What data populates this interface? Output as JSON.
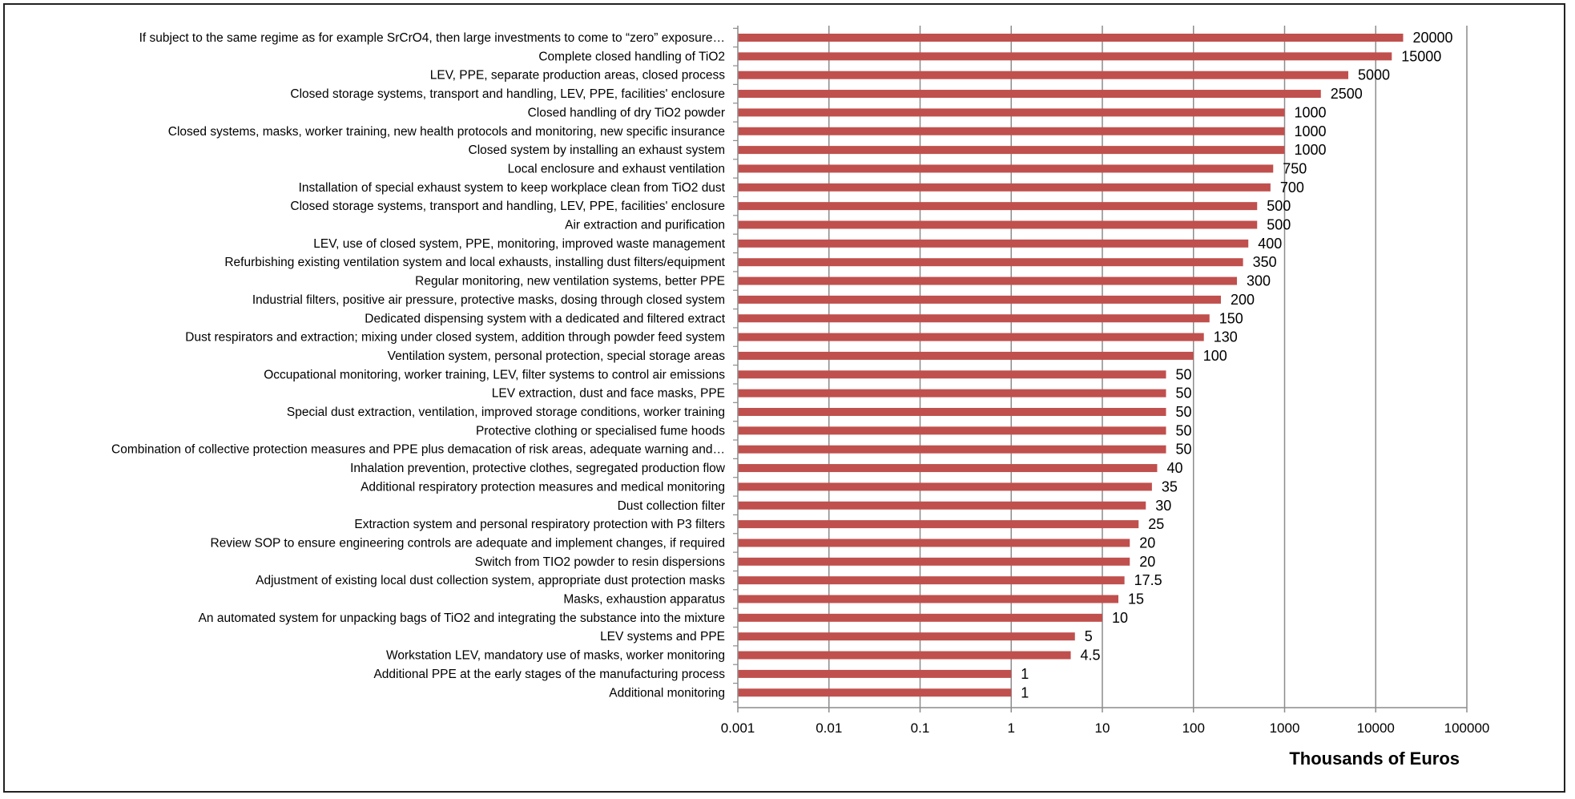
{
  "chart_data": {
    "type": "bar",
    "orientation": "horizontal",
    "xscale": "log",
    "xlim": [
      0.001,
      100000
    ],
    "xticks": [
      "0.001",
      "0.01",
      "0.1",
      "1",
      "10",
      "100",
      "1000",
      "10000",
      "100000"
    ],
    "xlabel": "Thousands of Euros",
    "ylabel": "",
    "title": "",
    "grid": "vertical major gridlines",
    "bar_color": "#c0504d",
    "categories": [
      "If subject to the same regime as for example SrCrO4, then large investments to come to “zero” exposure…",
      "Complete closed handling of TiO2",
      "LEV, PPE, separate production areas, closed process",
      "Closed storage systems, transport and handling, LEV, PPE, facilities' enclosure",
      "Closed handling of dry TiO2 powder",
      "Closed systems, masks, worker training, new health protocols and monitoring, new specific insurance",
      "Closed system by installing an exhaust system",
      "Local enclosure and exhaust ventilation",
      "Installation of special exhaust system to keep workplace clean from TiO2 dust",
      "Closed storage systems, transport and handling, LEV, PPE, facilities' enclosure",
      "Air extraction and purification",
      "LEV, use of closed system, PPE, monitoring, improved waste management",
      "Refurbishing existing ventilation system and local exhausts, installing dust filters/equipment",
      "Regular monitoring, new ventilation systems, better PPE",
      "Industrial filters, positive air pressure, protective masks, dosing through closed system",
      "Dedicated dispensing system with a dedicated and filtered extract",
      "Dust respirators and extraction; mixing under closed system, addition through powder feed system",
      "Ventilation system, personal protection, special storage areas",
      "Occupational monitoring, worker training, LEV, filter systems to control air emissions",
      "LEV extraction, dust and face masks, PPE",
      "Special dust extraction, ventilation, improved storage conditions, worker training",
      "Protective clothing or specialised fume hoods",
      "Combination of collective protection measures and PPE plus demacation of risk areas, adequate warning and…",
      "Inhalation prevention, protective clothes, segregated production flow",
      "Additional respiratory protection measures and medical monitoring",
      "Dust collection filter",
      "Extraction system and personal respiratory protection with P3 filters",
      "Review SOP to ensure engineering controls are adequate and implement changes, if required",
      "Switch from TIO2 powder to resin dispersions",
      "Adjustment of existing local dust collection system, appropriate dust protection masks",
      "Masks, exhaustion apparatus",
      "An automated system for unpacking bags of TiO2 and integrating the substance into the mixture",
      "LEV systems and PPE",
      "Workstation LEV, mandatory use of masks, worker monitoring",
      "Additional PPE at the early stages of the manufacturing process",
      "Additional monitoring"
    ],
    "values": [
      20000,
      15000,
      5000,
      2500,
      1000,
      1000,
      1000,
      750,
      700,
      500,
      500,
      400,
      350,
      300,
      200,
      150,
      130,
      100,
      50,
      50,
      50,
      50,
      50,
      40,
      35,
      30,
      25,
      20,
      20,
      17.5,
      15,
      10,
      5,
      4.5,
      1,
      1
    ],
    "value_labels": [
      "20000",
      "15000",
      "5000",
      "2500",
      "1000",
      "1000",
      "1000",
      "750",
      "700",
      "500",
      "500",
      "400",
      "350",
      "300",
      "200",
      "150",
      "130",
      "100",
      "50",
      "50",
      "50",
      "50",
      "50",
      "40",
      "35",
      "30",
      "25",
      "20",
      "20",
      "17.5",
      "15",
      "10",
      "5",
      "4.5",
      "1",
      "1"
    ]
  }
}
